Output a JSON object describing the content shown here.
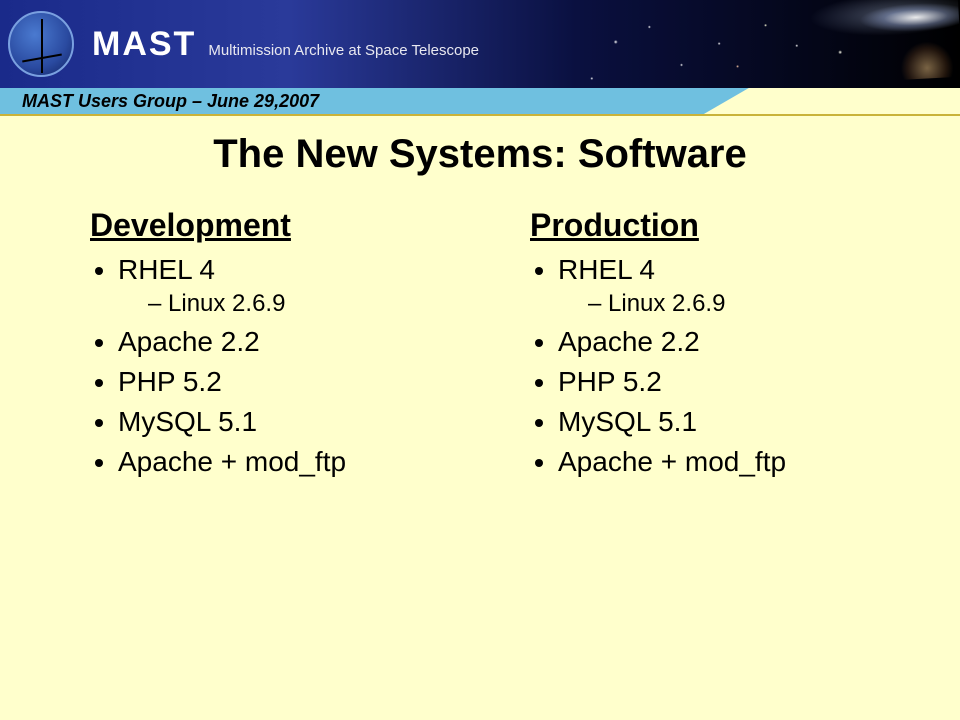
{
  "header": {
    "brand_main": "MAST",
    "brand_sub": "Multimission Archive at Space Telescope",
    "subband_text": "MAST Users Group – June 29,2007",
    "colors": {
      "band_gradient_start": "#1a2a8a",
      "band_gradient_end": "#000000",
      "subband_bg": "#6fc0e0",
      "subband_border": "#c9b33a"
    }
  },
  "slide": {
    "title": "The New Systems: Software",
    "title_fontsize": 40,
    "background_color": "#ffffcc",
    "text_color": "#000000",
    "columns": [
      {
        "heading": "Development",
        "items": [
          {
            "text": "RHEL 4",
            "sub": [
              "Linux 2.6.9"
            ]
          },
          {
            "text": "Apache 2.2"
          },
          {
            "text": "PHP 5.2"
          },
          {
            "text": "MySQL 5.1"
          },
          {
            "text": "Apache + mod_ftp"
          }
        ]
      },
      {
        "heading": "Production",
        "items": [
          {
            "text": "RHEL 4",
            "sub": [
              "Linux 2.6.9"
            ]
          },
          {
            "text": "Apache 2.2"
          },
          {
            "text": "PHP 5.2"
          },
          {
            "text": "MySQL 5.1"
          },
          {
            "text": "Apache + mod_ftp"
          }
        ]
      }
    ],
    "heading_fontsize": 32,
    "item_fontsize": 28,
    "subitem_fontsize": 24
  }
}
